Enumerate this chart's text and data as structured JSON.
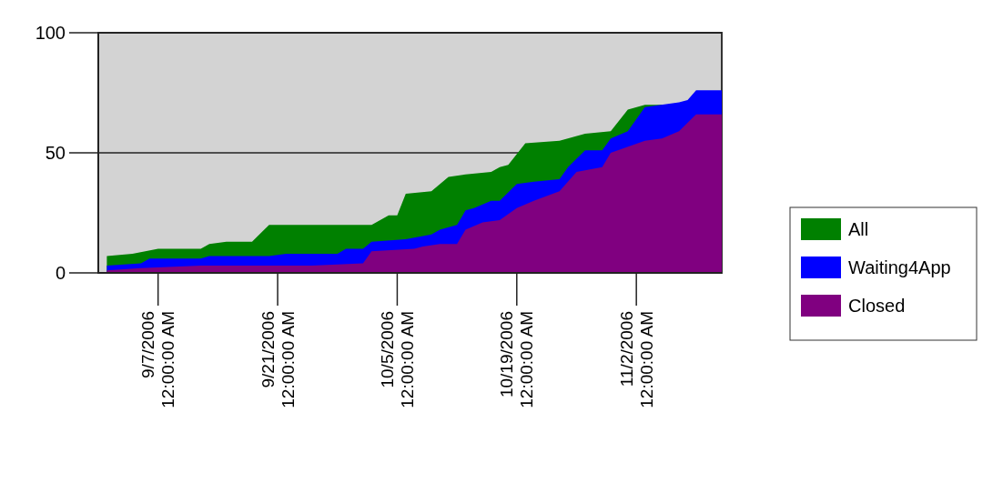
{
  "chart_data": {
    "type": "area",
    "xlim": [
      "2006-08-31",
      "2006-11-12"
    ],
    "ylim": [
      0,
      100
    ],
    "yticks": [
      0,
      50,
      100
    ],
    "xticks": [
      {
        "value": "2006-09-07",
        "label": "9/7/2006 12:00:00 AM"
      },
      {
        "value": "2006-09-21",
        "label": "9/21/2006 12:00:00 AM"
      },
      {
        "value": "2006-10-05",
        "label": "10/5/2006 12:00:00 AM"
      },
      {
        "value": "2006-10-19",
        "label": "10/19/2006 12:00:00 AM"
      },
      {
        "value": "2006-11-02",
        "label": "11/2/2006 12:00:00 AM"
      }
    ],
    "grid": "y",
    "legend": "right",
    "series": [
      {
        "name": "All",
        "color": "#008000",
        "x": [
          "2006-09-01",
          "2006-09-04",
          "2006-09-07",
          "2006-09-12",
          "2006-09-13",
          "2006-09-15",
          "2006-09-18",
          "2006-09-20",
          "2006-10-02",
          "2006-10-04",
          "2006-10-05",
          "2006-10-06",
          "2006-10-09",
          "2006-10-11",
          "2006-10-13",
          "2006-10-16",
          "2006-10-17",
          "2006-10-18",
          "2006-10-20",
          "2006-10-24",
          "2006-10-27",
          "2006-10-30",
          "2006-11-01",
          "2006-11-03",
          "2006-11-05"
        ],
        "values": [
          7,
          8,
          10,
          10,
          12,
          13,
          13,
          20,
          20,
          24,
          24,
          33,
          34,
          40,
          41,
          42,
          44,
          45,
          54,
          55,
          58,
          59,
          68,
          70,
          70
        ]
      },
      {
        "name": "Waiting4App",
        "color": "#0000ff",
        "x": [
          "2006-09-01",
          "2006-09-05",
          "2006-09-06",
          "2006-09-12",
          "2006-09-13",
          "2006-09-20",
          "2006-09-22",
          "2006-09-28",
          "2006-09-29",
          "2006-10-01",
          "2006-10-02",
          "2006-10-06",
          "2006-10-09",
          "2006-10-10",
          "2006-10-12",
          "2006-10-13",
          "2006-10-14",
          "2006-10-16",
          "2006-10-17",
          "2006-10-19",
          "2006-10-21",
          "2006-10-24",
          "2006-10-25",
          "2006-10-27",
          "2006-10-29",
          "2006-10-30",
          "2006-11-01",
          "2006-11-03",
          "2006-11-07",
          "2006-11-08",
          "2006-11-09",
          "2006-11-12"
        ],
        "values": [
          3,
          4,
          6,
          6,
          7,
          7,
          8,
          8,
          10,
          10,
          13,
          14,
          16,
          18,
          20,
          26,
          27,
          30,
          30,
          37,
          38,
          39,
          44,
          51,
          51,
          56,
          59,
          69,
          71,
          72,
          76,
          76
        ]
      },
      {
        "name": "Closed",
        "color": "#800080",
        "x": [
          "2006-09-01",
          "2006-09-05",
          "2006-09-12",
          "2006-09-25",
          "2006-10-01",
          "2006-10-02",
          "2006-10-07",
          "2006-10-08",
          "2006-10-10",
          "2006-10-12",
          "2006-10-13",
          "2006-10-15",
          "2006-10-17",
          "2006-10-19",
          "2006-10-21",
          "2006-10-24",
          "2006-10-26",
          "2006-10-29",
          "2006-10-30",
          "2006-11-03",
          "2006-11-05",
          "2006-11-07",
          "2006-11-09",
          "2006-11-12"
        ],
        "values": [
          1,
          2,
          3,
          3,
          4,
          9,
          10,
          11,
          12,
          12,
          18,
          21,
          22,
          27,
          30,
          34,
          42,
          44,
          50,
          55,
          56,
          59,
          66,
          66
        ]
      }
    ]
  }
}
